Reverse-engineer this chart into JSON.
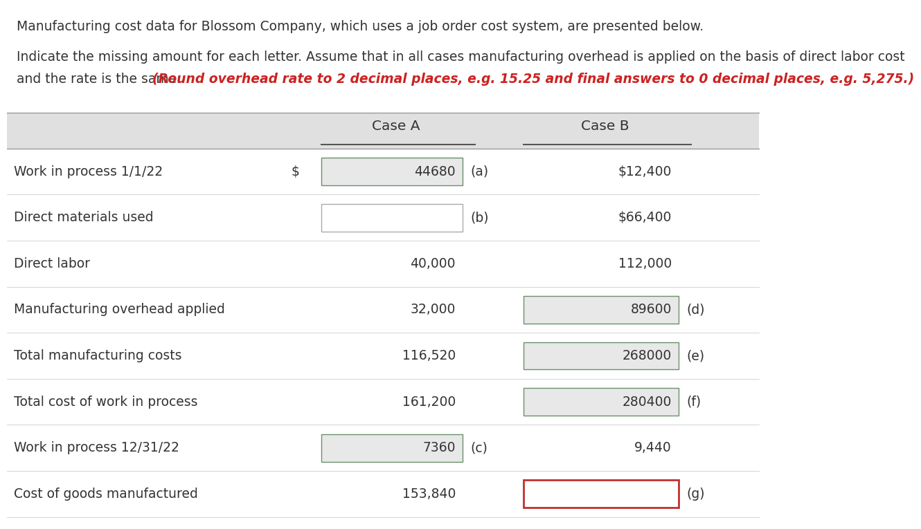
{
  "title1": "Manufacturing cost data for Blossom Company, which uses a job order cost system, are presented below.",
  "line1_para2": "Indicate the missing amount for each letter. Assume that in all cases manufacturing overhead is applied on the basis of direct labor cost",
  "line2_normal": "and the rate is the same. ",
  "line2_italic": "(Round overhead rate to 2 decimal places, e.g. 15.25 and final answers to 0 decimal places, e.g. 5,275.)",
  "col_headers": [
    "Case A",
    "Case B"
  ],
  "row_labels": [
    "Work in process 1/1/22",
    "Direct materials used",
    "Direct labor",
    "Manufacturing overhead applied",
    "Total manufacturing costs",
    "Total cost of work in process",
    "Work in process 12/31/22",
    "Cost of goods manufactured"
  ],
  "case_a_values": [
    "44680",
    "",
    "40,000",
    "32,000",
    "116,520",
    "161,200",
    "7360",
    "153,840"
  ],
  "case_a_letters": [
    "(a)",
    "(b)",
    "",
    "",
    "",
    "",
    "(c)",
    ""
  ],
  "case_a_has_box": [
    true,
    true,
    false,
    false,
    false,
    false,
    true,
    false
  ],
  "case_a_box_fill": [
    "#e8e8e8",
    "#ffffff",
    "#e8e8e8",
    "#e8e8e8",
    "#e8e8e8",
    "#e8e8e8",
    "#e8e8e8",
    "#e8e8e8"
  ],
  "case_a_box_border": [
    "#6a8f6a",
    "#aaaaaa",
    "#6a8f6a",
    "#6a8f6a",
    "#6a8f6a",
    "#6a8f6a",
    "#6a8f6a",
    "#6a8f6a"
  ],
  "case_a_has_dollar": [
    true,
    false,
    false,
    false,
    false,
    false,
    false,
    false
  ],
  "case_b_values": [
    "$12,400",
    "$66,400",
    "112,000",
    "89600",
    "268000",
    "280400",
    "9,440",
    ""
  ],
  "case_b_letters": [
    "",
    "",
    "",
    "(d)",
    "(e)",
    "(f)",
    "",
    "(g)"
  ],
  "case_b_has_box": [
    false,
    false,
    false,
    true,
    true,
    true,
    false,
    true
  ],
  "case_b_box_red": [
    false,
    false,
    false,
    false,
    false,
    false,
    false,
    true
  ],
  "case_b_box_fill": [
    "#e8e8e8",
    "#e8e8e8",
    "#e8e8e8",
    "#e8e8e8",
    "#e8e8e8",
    "#e8e8e8",
    "#e8e8e8",
    "#ffffff"
  ],
  "case_b_box_border_normal": "#6a8f6a",
  "case_b_box_border_red": "#c03030",
  "bg_color": "#ffffff",
  "header_bg": "#e0e0e0",
  "text_color": "#333333",
  "red_text_color": "#cc2222",
  "font_size": 13.5,
  "header_font_size": 14.5
}
